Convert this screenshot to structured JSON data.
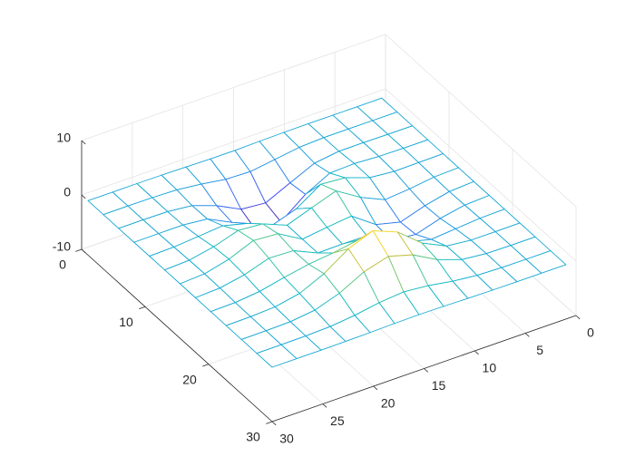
{
  "chart_data": {
    "type": "mesh",
    "x": [
      1,
      3.42,
      5.83,
      8.25,
      10.67,
      13.08,
      15.5,
      17.92,
      20.33,
      22.75,
      25.17,
      27.58,
      30
    ],
    "y": [
      1,
      3.42,
      5.83,
      8.25,
      10.67,
      13.08,
      15.5,
      17.92,
      20.33,
      22.75,
      25.17,
      27.58,
      30
    ],
    "z": [
      [
        0,
        0,
        0,
        0.01,
        -0.01,
        -0.09,
        -0.19,
        -0.18,
        -0.09,
        -0.03,
        0,
        0,
        0
      ],
      [
        0,
        0,
        0.01,
        0.01,
        -0.22,
        -0.89,
        -1.54,
        -1.38,
        -0.68,
        -0.18,
        -0.03,
        0,
        0
      ],
      [
        0,
        0.01,
        0.05,
        0.05,
        -0.59,
        -2.63,
        -4.75,
        -4.34,
        -2.1,
        -0.53,
        -0.06,
        0,
        0
      ],
      [
        0,
        0.01,
        0.08,
        0.33,
        0.15,
        -2.19,
        -5.68,
        -5.76,
        -2.63,
        -0.44,
        0.04,
        0.03,
        0
      ],
      [
        -0.01,
        -0.06,
        -0.13,
        0.3,
        1.86,
        2.22,
        -0.72,
        -2.22,
        -0.27,
        0.88,
        0.5,
        0.11,
        0.01
      ],
      [
        -0.02,
        -0.2,
        -0.8,
        -1.21,
        0.8,
        3.55,
        2,
        0.39,
        2.2,
        2.56,
        1.12,
        0.23,
        0.02
      ],
      [
        -0.03,
        -0.3,
        -1.33,
        -2.77,
        -1.65,
        1.48,
        0.98,
        0.37,
        2.94,
        3.27,
        1.41,
        0.29,
        0.03
      ],
      [
        -0.02,
        -0.24,
        -1.12,
        -2.49,
        -2,
        0.39,
        0.46,
        0.38,
        2.38,
        2.56,
        1.09,
        0.23,
        0.02
      ],
      [
        -0.01,
        -0.11,
        -0.48,
        -0.86,
        0.23,
        2.79,
        3.69,
        2.94,
        2.43,
        1.58,
        0.58,
        0.11,
        0.01
      ],
      [
        0,
        -0.02,
        -0.01,
        0.48,
        2.61,
        6.2,
        8,
        6.25,
        3.25,
        1.19,
        0.29,
        0.05,
        0
      ],
      [
        0,
        0.01,
        0.08,
        0.55,
        2.09,
        4.55,
        5.85,
        4.56,
        2.21,
        0.68,
        0.13,
        0.02,
        0
      ],
      [
        0,
        0,
        0.03,
        0.19,
        0.68,
        1.44,
        1.86,
        1.45,
        0.69,
        0.2,
        0.04,
        0,
        0
      ],
      [
        0,
        0,
        0,
        0.03,
        0.09,
        0.19,
        0.24,
        0.19,
        0.09,
        0.03,
        0,
        0,
        0
      ]
    ],
    "xlim": [
      0,
      30
    ],
    "ylim": [
      0,
      30
    ],
    "zlim": [
      -10,
      10
    ],
    "xticks": [
      0,
      5,
      10,
      15,
      20,
      25,
      30
    ],
    "yticks": [
      0,
      10,
      20,
      30
    ],
    "zticks": [
      -10,
      0,
      10
    ],
    "grid": true,
    "colormap": [
      "#3e26a8",
      "#4748f1",
      "#2f78f1",
      "#1c9ddc",
      "#10b9c6",
      "#44c598",
      "#a0c64b",
      "#f4ba3b",
      "#f9fb14"
    ]
  }
}
